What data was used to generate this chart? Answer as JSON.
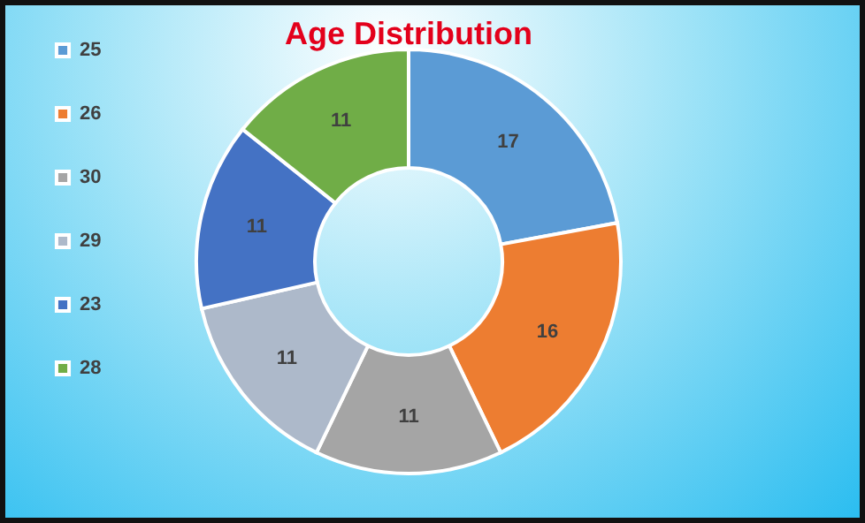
{
  "chart_data": {
    "type": "donut",
    "title": "Age Distribution",
    "categories": [
      "25",
      "26",
      "30",
      "29",
      "23",
      "28"
    ],
    "values": [
      17,
      16,
      11,
      11,
      11,
      11
    ],
    "colors": [
      "#5b9bd5",
      "#ed7d31",
      "#a5a5a5",
      "#adb9ca",
      "#4472c4",
      "#70ad47"
    ],
    "data_labels": true,
    "legend": "left"
  }
}
